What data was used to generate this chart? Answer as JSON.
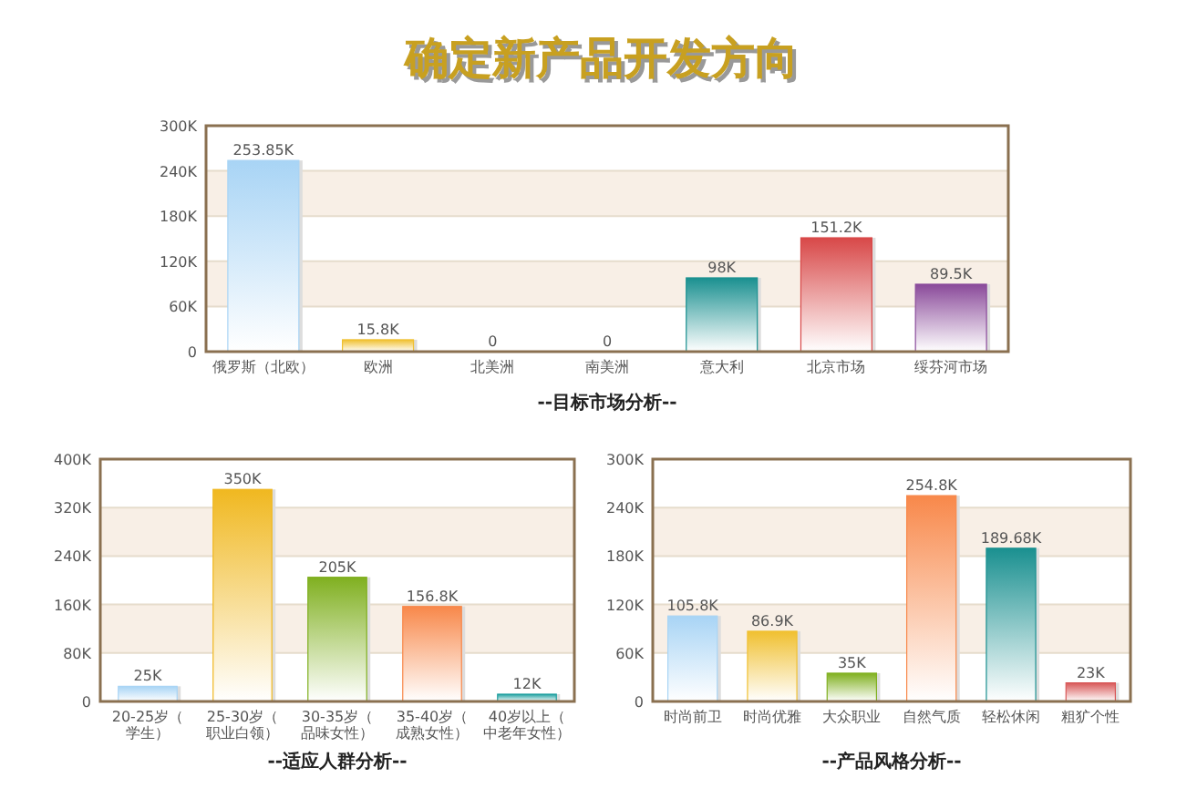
{
  "chart_data": [
    {
      "type": "bar",
      "title": "确定新产品开发方向",
      "xlabel": "--目标市场分析--",
      "categories": [
        "俄罗斯（北欧）",
        "欧洲",
        "北美洲",
        "南美洲",
        "意大利",
        "北京市场",
        "绥芬河市场"
      ],
      "values": [
        253850,
        15800,
        0,
        0,
        98000,
        151200,
        89500
      ],
      "value_labels": [
        "253.85K",
        "15.8K",
        "0",
        "0",
        "98K",
        "151.2K",
        "89.5K"
      ],
      "colors": [
        "#a8d4f5",
        "#f0c030",
        "#6aa84f",
        "#f08848",
        "#1a9090",
        "#d84848",
        "#8a4a9a"
      ],
      "ylim": [
        0,
        300000
      ],
      "yticks": [
        {
          "value": 0,
          "label": "0"
        },
        {
          "value": 60000,
          "label": "60K"
        },
        {
          "value": 120000,
          "label": "120K"
        },
        {
          "value": 180000,
          "label": "180K"
        },
        {
          "value": 240000,
          "label": "240K"
        },
        {
          "value": 300000,
          "label": "300K"
        }
      ],
      "grid": "y"
    },
    {
      "type": "bar",
      "xlabel": "--适应人群分析--",
      "categories": [
        "20-25岁（学生）",
        "25-30岁（职业白领）",
        "30-35岁（品味女性）",
        "35-40岁（成熟女性）",
        "40岁以上（中老年女性）"
      ],
      "values": [
        25000,
        350000,
        205000,
        156800,
        12000
      ],
      "value_labels": [
        "25K",
        "350K",
        "205K",
        "156.8K",
        "12K"
      ],
      "colors": [
        "#a8d4f5",
        "#f0b820",
        "#80b020",
        "#f8884a",
        "#20a0a0"
      ],
      "ylim": [
        0,
        400000
      ],
      "yticks": [
        {
          "value": 0,
          "label": "0"
        },
        {
          "value": 80000,
          "label": "80K"
        },
        {
          "value": 160000,
          "label": "160K"
        },
        {
          "value": 240000,
          "label": "240K"
        },
        {
          "value": 320000,
          "label": "320K"
        },
        {
          "value": 400000,
          "label": "400K"
        }
      ],
      "grid": "y"
    },
    {
      "type": "bar",
      "xlabel": "--产品风格分析--",
      "categories": [
        "时尚前卫",
        "时尚优雅",
        "大众职业",
        "自然气质",
        "轻松休闲",
        "粗犷个性"
      ],
      "values": [
        105800,
        86900,
        35000,
        254800,
        189680,
        23000
      ],
      "value_labels": [
        "105.8K",
        "86.9K",
        "35K",
        "254.8K",
        "189.68K",
        "23K"
      ],
      "colors": [
        "#a8d4f5",
        "#f0c030",
        "#80b020",
        "#f8884a",
        "#1a9090",
        "#d85858"
      ],
      "ylim": [
        0,
        300000
      ],
      "yticks": [
        {
          "value": 0,
          "label": "0"
        },
        {
          "value": 60000,
          "label": "60K"
        },
        {
          "value": 120000,
          "label": "120K"
        },
        {
          "value": 180000,
          "label": "180K"
        },
        {
          "value": 240000,
          "label": "240K"
        },
        {
          "value": 300000,
          "label": "300K"
        }
      ],
      "grid": "y"
    }
  ]
}
